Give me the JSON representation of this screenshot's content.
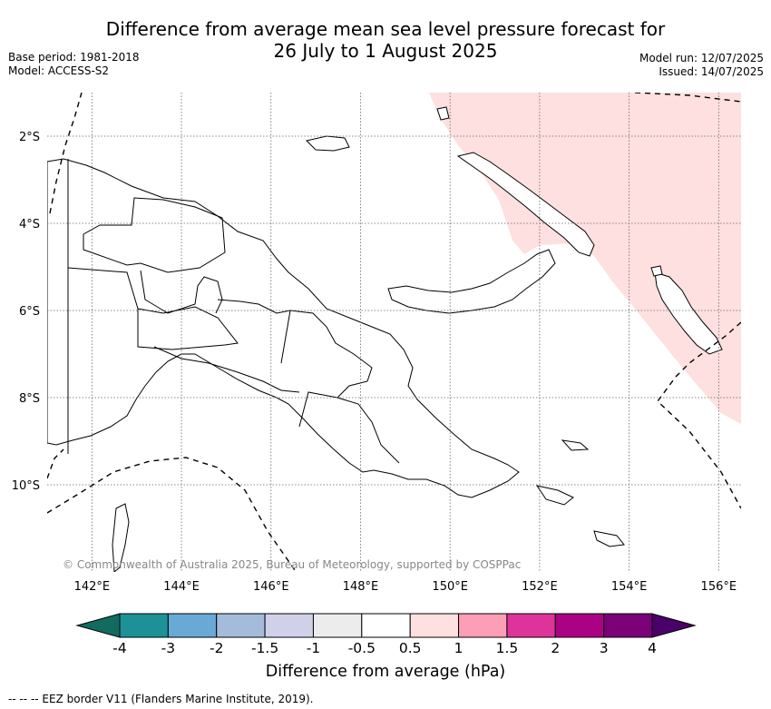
{
  "title": {
    "line1": "Difference from average mean sea level pressure forecast for",
    "line2": "26 July to 1 August 2025"
  },
  "meta_left": {
    "base_period": "Base period: 1981-2018",
    "model": "Model: ACCESS-S2"
  },
  "meta_right": {
    "model_run": "Model run: 12/07/2025",
    "issued": "Issued: 14/07/2025"
  },
  "map": {
    "region": "Papua New Guinea",
    "lon_range": [
      141,
      156.5
    ],
    "lat_range": [
      -1,
      -12
    ],
    "lat_ticks": [
      {
        "value": -2,
        "label": "2°S"
      },
      {
        "value": -4,
        "label": "4°S"
      },
      {
        "value": -6,
        "label": "6°S"
      },
      {
        "value": -8,
        "label": "8°S"
      },
      {
        "value": -10,
        "label": "10°S"
      }
    ],
    "lon_ticks": [
      {
        "value": 142,
        "label": "142°E"
      },
      {
        "value": 144,
        "label": "144°E"
      },
      {
        "value": 146,
        "label": "146°E"
      },
      {
        "value": 148,
        "label": "148°E"
      },
      {
        "value": 150,
        "label": "150°E"
      },
      {
        "value": 152,
        "label": "152°E"
      },
      {
        "value": 154,
        "label": "154°E"
      },
      {
        "value": 156,
        "label": "156°E"
      }
    ],
    "gridlines": "dotted",
    "anomaly_field": {
      "value_range_hPa": "0.5 to 1",
      "color": "#fde0df",
      "location": "north-east"
    },
    "copyright": "© Commonwealth of Australia 2025, Bureau of Meteorology, supported by COSPPac"
  },
  "colorbar": {
    "colors": [
      "#116b5f",
      "#1c9297",
      "#68a9d5",
      "#a5bbdc",
      "#d0d1e8",
      "#ececec",
      "#ffffff",
      "#fde0df",
      "#fb9eb6",
      "#de339a",
      "#ab0184",
      "#7a0178",
      "#4b016a"
    ],
    "labels": [
      "-4",
      "-3",
      "-2",
      "-1.5",
      "-1",
      "-0.5",
      "0.5",
      "1",
      "1.5",
      "2",
      "3",
      "4"
    ],
    "title": "Difference from average (hPa)"
  },
  "footer": "-- -- -- EEZ border V11 (Flanders Marine Institute, 2019)."
}
